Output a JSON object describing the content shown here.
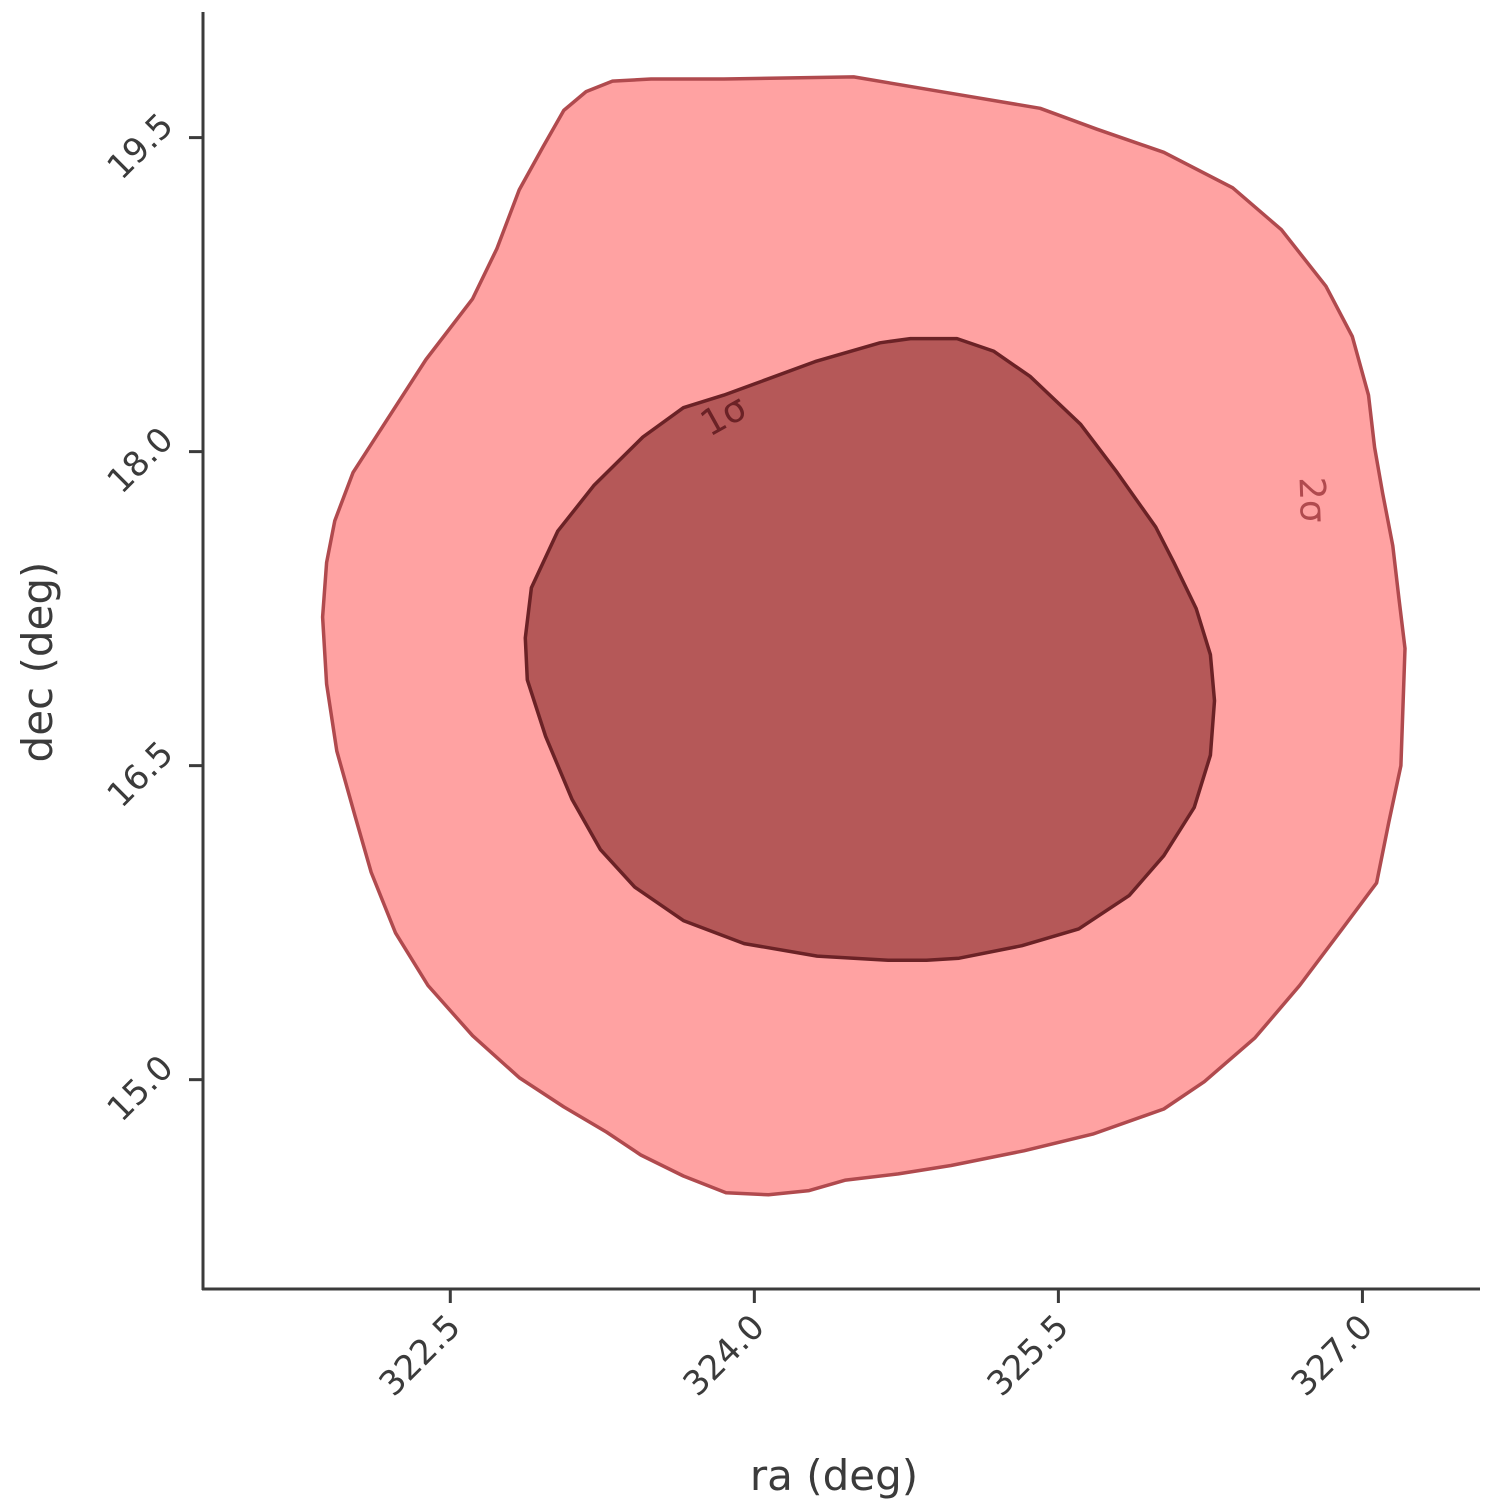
{
  "chart_data": {
    "type": "contour",
    "xlabel": "ra (deg)",
    "ylabel": "dec (deg)",
    "xlim": [
      321.28,
      327.58
    ],
    "ylim": [
      14.0,
      20.1
    ],
    "xticks": [
      322.5,
      324.0,
      325.5,
      327.0
    ],
    "xtick_labels": [
      "322.5",
      "324.0",
      "325.5",
      "327.0"
    ],
    "yticks": [
      15.0,
      16.5,
      18.0,
      19.5
    ],
    "ytick_labels": [
      "15.0",
      "16.5",
      "18.0",
      "19.5"
    ],
    "grid": false,
    "levels": [
      {
        "label": "2σ",
        "fill": "#ff4d4d",
        "fill_opacity": 0.52,
        "edge": "#b04a4e",
        "label_color": "#b04a4e",
        "label_pos": [
          326.75,
          17.77
        ],
        "label_angle": 88,
        "contour": [
          [
            323.85,
            19.78
          ],
          [
            324.49,
            19.79
          ],
          [
            325.04,
            19.7
          ],
          [
            325.41,
            19.64
          ],
          [
            325.69,
            19.54
          ],
          [
            326.02,
            19.43
          ],
          [
            326.36,
            19.26
          ],
          [
            326.6,
            19.06
          ],
          [
            326.82,
            18.79
          ],
          [
            326.95,
            18.55
          ],
          [
            327.03,
            18.27
          ],
          [
            327.06,
            18.02
          ],
          [
            327.1,
            17.8
          ],
          [
            327.15,
            17.55
          ],
          [
            327.18,
            17.3
          ],
          [
            327.21,
            17.06
          ],
          [
            327.19,
            16.5
          ],
          [
            327.13,
            16.23
          ],
          [
            327.07,
            15.94
          ],
          [
            326.9,
            15.72
          ],
          [
            326.69,
            15.45
          ],
          [
            326.47,
            15.2
          ],
          [
            326.22,
            14.99
          ],
          [
            326.02,
            14.86
          ],
          [
            325.67,
            14.74
          ],
          [
            325.33,
            14.66
          ],
          [
            324.97,
            14.59
          ],
          [
            324.71,
            14.55
          ],
          [
            324.45,
            14.52
          ],
          [
            324.27,
            14.47
          ],
          [
            324.07,
            14.45
          ],
          [
            323.86,
            14.46
          ],
          [
            323.65,
            14.54
          ],
          [
            323.44,
            14.64
          ],
          [
            323.27,
            14.75
          ],
          [
            323.06,
            14.87
          ],
          [
            322.84,
            15.01
          ],
          [
            322.61,
            15.21
          ],
          [
            322.39,
            15.45
          ],
          [
            322.23,
            15.7
          ],
          [
            322.11,
            15.99
          ],
          [
            322.03,
            16.26
          ],
          [
            321.94,
            16.57
          ],
          [
            321.89,
            16.89
          ],
          [
            321.87,
            17.21
          ],
          [
            321.89,
            17.47
          ],
          [
            321.93,
            17.67
          ],
          [
            322.02,
            17.9
          ],
          [
            322.18,
            18.14
          ],
          [
            322.38,
            18.44
          ],
          [
            322.61,
            18.73
          ],
          [
            322.73,
            18.97
          ],
          [
            322.84,
            19.25
          ],
          [
            322.96,
            19.46
          ],
          [
            323.06,
            19.63
          ],
          [
            323.17,
            19.72
          ],
          [
            323.3,
            19.77
          ],
          [
            323.49,
            19.78
          ],
          [
            323.85,
            19.78
          ]
        ]
      },
      {
        "label": "1σ",
        "fill": "#6b0d0d",
        "fill_opacity": 0.5,
        "edge": "#6b2226",
        "label_color": "#6b2226",
        "label_pos": [
          323.85,
          18.17
        ],
        "label_angle": -29,
        "contour": [
          [
            324.3,
            18.43
          ],
          [
            324.62,
            18.52
          ],
          [
            324.77,
            18.54
          ],
          [
            325.0,
            18.54
          ],
          [
            325.18,
            18.48
          ],
          [
            325.36,
            18.36
          ],
          [
            325.61,
            18.13
          ],
          [
            325.79,
            17.9
          ],
          [
            325.98,
            17.64
          ],
          [
            326.07,
            17.47
          ],
          [
            326.18,
            17.25
          ],
          [
            326.25,
            17.03
          ],
          [
            326.27,
            16.81
          ],
          [
            326.25,
            16.55
          ],
          [
            326.17,
            16.3
          ],
          [
            326.02,
            16.07
          ],
          [
            325.85,
            15.88
          ],
          [
            325.6,
            15.72
          ],
          [
            325.32,
            15.64
          ],
          [
            325.01,
            15.58
          ],
          [
            324.85,
            15.57
          ],
          [
            324.66,
            15.57
          ],
          [
            324.31,
            15.59
          ],
          [
            323.95,
            15.65
          ],
          [
            323.65,
            15.76
          ],
          [
            323.41,
            15.92
          ],
          [
            323.24,
            16.1
          ],
          [
            323.1,
            16.34
          ],
          [
            322.97,
            16.64
          ],
          [
            322.88,
            16.91
          ],
          [
            322.87,
            17.11
          ],
          [
            322.9,
            17.35
          ],
          [
            323.03,
            17.62
          ],
          [
            323.21,
            17.84
          ],
          [
            323.45,
            18.07
          ],
          [
            323.65,
            18.21
          ],
          [
            323.85,
            18.27
          ],
          [
            324.02,
            18.33
          ],
          [
            324.3,
            18.43
          ]
        ]
      }
    ]
  }
}
